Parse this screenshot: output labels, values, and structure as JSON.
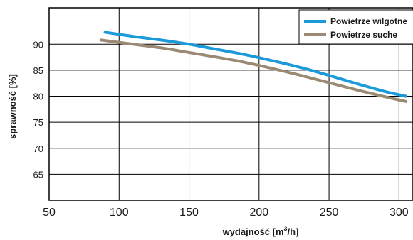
{
  "chart_data": {
    "type": "line",
    "title": "",
    "xlabel_main": "wydajność  [m",
    "xlabel_sup": "3",
    "xlabel_tail": "/h]",
    "ylabel": "sprawność  [%]",
    "xlim": [
      50,
      310
    ],
    "ylim": [
      60,
      97
    ],
    "x_ticks": [
      50,
      100,
      150,
      200,
      250,
      300
    ],
    "y_ticks": [
      65,
      70,
      75,
      80,
      85,
      90
    ],
    "grid": true,
    "legend_position": "top-right",
    "series": [
      {
        "name": "Powietrze wilgotne",
        "color": "#1a9ad9",
        "x": [
          90,
          110,
          130,
          150,
          170,
          190,
          210,
          230,
          250,
          270,
          290,
          305
        ],
        "y": [
          92.3,
          91.5,
          90.8,
          90.0,
          89.0,
          88.0,
          86.8,
          85.5,
          84.0,
          82.4,
          80.9,
          80.0
        ]
      },
      {
        "name": "Powietrze suche",
        "color": "#9a8a74",
        "x": [
          87,
          110,
          130,
          150,
          170,
          190,
          210,
          230,
          250,
          270,
          290,
          305
        ],
        "y": [
          90.8,
          90.0,
          89.3,
          88.4,
          87.5,
          86.5,
          85.3,
          84.0,
          82.6,
          81.2,
          79.9,
          79.0
        ]
      }
    ]
  }
}
